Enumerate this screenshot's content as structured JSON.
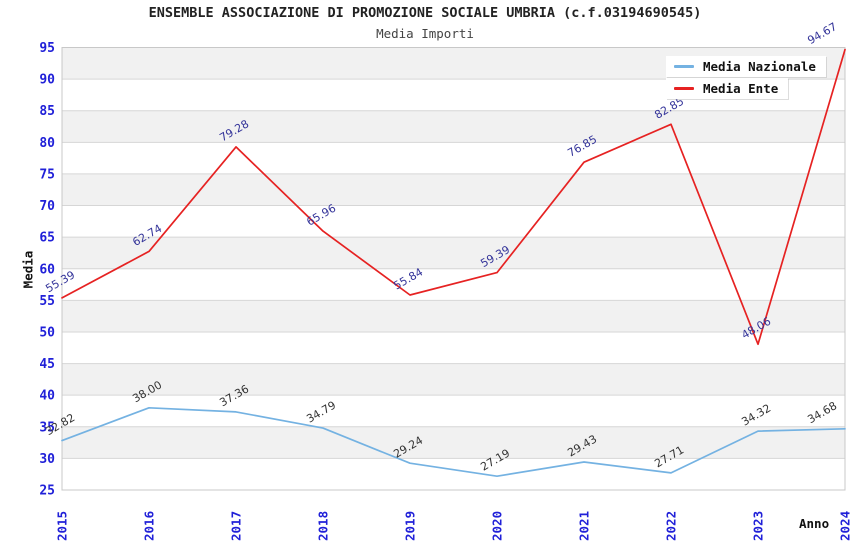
{
  "chart_data": {
    "type": "line",
    "title": "ENSEMBLE ASSOCIAZIONE DI PROMOZIONE SOCIALE UMBRIA (c.f.03194690545)",
    "subtitle": "Media Importi",
    "xlabel": "Anno",
    "ylabel": "Media",
    "categories": [
      "2015",
      "2016",
      "2017",
      "2018",
      "2019",
      "2020",
      "2021",
      "2022",
      "2023",
      "2024"
    ],
    "series": [
      {
        "name": "Media Nazionale",
        "color": "#74b2e2",
        "label_color": "#333333",
        "values": [
          32.82,
          38.0,
          37.36,
          34.79,
          29.24,
          27.19,
          29.43,
          27.71,
          34.32,
          34.68
        ],
        "labels": [
          "32.82",
          "38.00",
          "37.36",
          "34.79",
          "29.24",
          "27.19",
          "29.43",
          "27.71",
          "34.32",
          "34.68"
        ]
      },
      {
        "name": "Media Ente",
        "color": "#e62222",
        "label_color": "#333399",
        "values": [
          55.39,
          62.74,
          79.28,
          65.96,
          55.84,
          59.39,
          76.85,
          82.85,
          48.06,
          94.67
        ],
        "labels": [
          "55.39",
          "62.74",
          "79.28",
          "65.96",
          "55.84",
          "59.39",
          "76.85",
          "82.85",
          "48.06",
          "94.67"
        ]
      }
    ],
    "ylim": [
      25,
      95
    ],
    "ytick_step": 5,
    "ytick_labels": [
      "25",
      "30",
      "35",
      "40",
      "45",
      "50",
      "55",
      "60",
      "65",
      "70",
      "75",
      "80",
      "85",
      "90",
      "95"
    ],
    "grid": true,
    "legend_position": "top-right",
    "colors": {
      "axis_tick": "#2020d8",
      "grid_line": "#d6d6d6",
      "plot_border": "#c8c8c8",
      "band_fill": "#f1f1f1",
      "band_alt_fill": "#ffffff"
    }
  }
}
